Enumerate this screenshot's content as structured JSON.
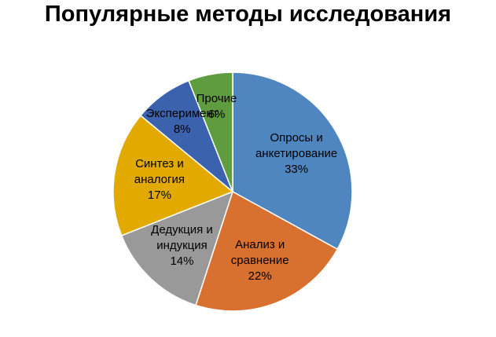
{
  "chart_data": {
    "type": "pie",
    "title": "Популярные методы исследования",
    "categories": [
      "Опросы и анкетирование",
      "Анализ и сравнение",
      "Дедукция и индукция",
      "Синтез и аналогия",
      "Эксперимент",
      "Прочие"
    ],
    "values": [
      33,
      22,
      14,
      17,
      8,
      6
    ],
    "value_labels": [
      "33%",
      "22%",
      "14%",
      "17%",
      "8%",
      "6%"
    ],
    "colors": [
      "#4f86c0",
      "#d8702f",
      "#999999",
      "#e2a900",
      "#3b63ad",
      "#5f9b3f"
    ]
  }
}
